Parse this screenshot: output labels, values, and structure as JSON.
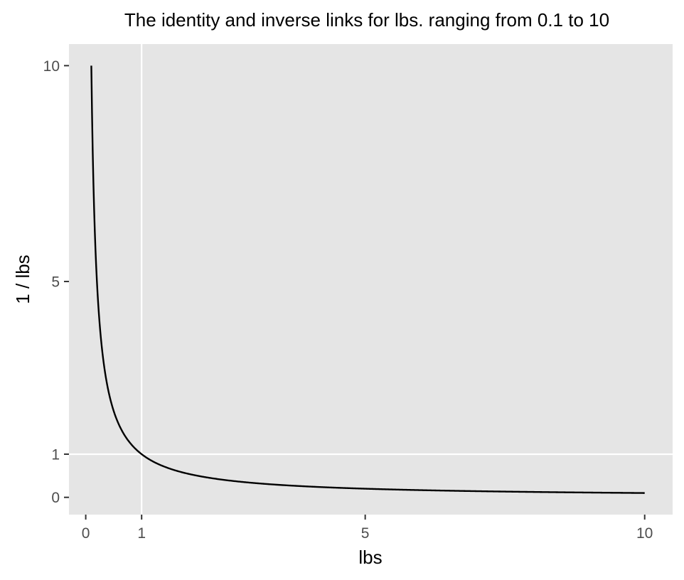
{
  "chart_data": {
    "type": "line",
    "title": "The identity and inverse links for lbs. ranging from 0.1 to 10",
    "xlabel": "lbs",
    "ylabel": "1 / lbs",
    "xlim": [
      -0.3,
      10.5
    ],
    "ylim": [
      -0.4,
      10.5
    ],
    "x_ticks": [
      0,
      1,
      5,
      10
    ],
    "x_tick_labels": [
      "0",
      "1",
      "5",
      "10"
    ],
    "y_ticks": [
      0,
      1,
      5,
      10
    ],
    "y_tick_labels": [
      "0",
      "1",
      "5",
      "10"
    ],
    "grid": true,
    "legend": "none",
    "series": [
      {
        "function": "1 / lbs",
        "x_range": [
          0.1,
          10
        ],
        "color": "#000000",
        "points": [
          [
            0.1,
            10.0
          ],
          [
            0.12,
            8.33
          ],
          [
            0.15,
            6.67
          ],
          [
            0.2,
            5.0
          ],
          [
            0.25,
            4.0
          ],
          [
            0.3,
            3.33
          ],
          [
            0.4,
            2.5
          ],
          [
            0.5,
            2.0
          ],
          [
            0.6,
            1.67
          ],
          [
            0.7,
            1.43
          ],
          [
            0.8,
            1.25
          ],
          [
            0.9,
            1.11
          ],
          [
            1.0,
            1.0
          ],
          [
            1.25,
            0.8
          ],
          [
            1.5,
            0.67
          ],
          [
            2.0,
            0.5
          ],
          [
            2.5,
            0.4
          ],
          [
            3.0,
            0.33
          ],
          [
            4.0,
            0.25
          ],
          [
            5.0,
            0.2
          ],
          [
            6.0,
            0.17
          ],
          [
            7.0,
            0.14
          ],
          [
            8.0,
            0.13
          ],
          [
            9.0,
            0.11
          ],
          [
            10.0,
            0.1
          ]
        ]
      }
    ]
  },
  "colors": {
    "panel_background": "#e5e5e5",
    "grid_line": "#ffffff",
    "tick_mark": "#333333",
    "tick_label": "#4d4d4d",
    "series_line": "#000000"
  }
}
